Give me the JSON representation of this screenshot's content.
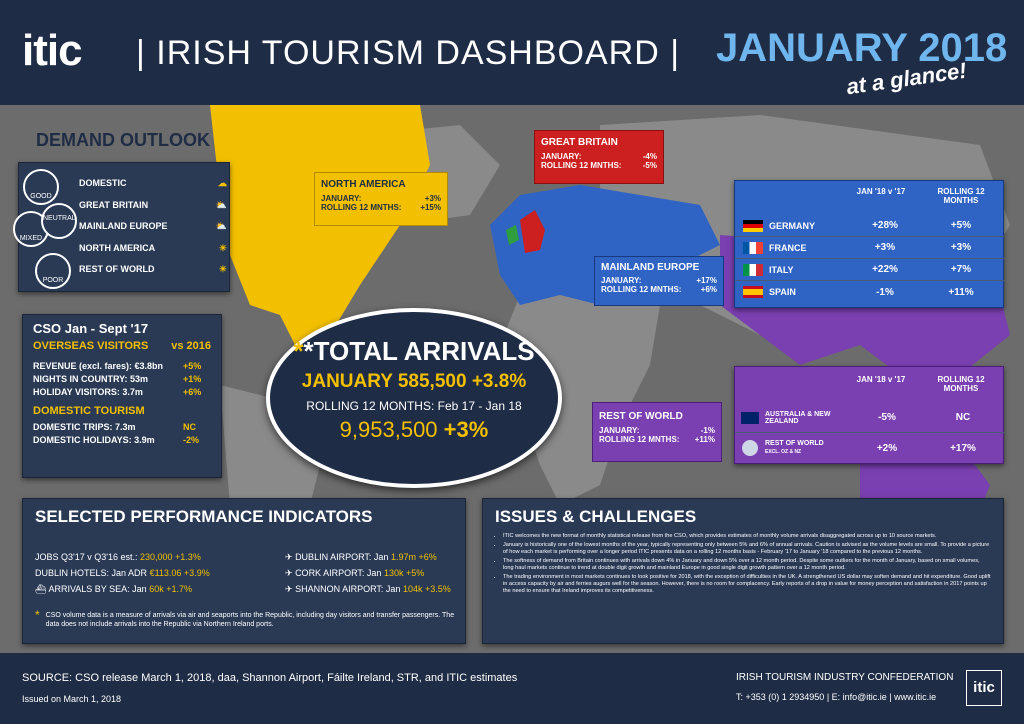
{
  "header": {
    "logo": "itic",
    "title": "| IRISH TOURISM DASHBOARD |",
    "month": "JANUARY 2018",
    "tagline": "at a glance!"
  },
  "demand": {
    "title": "DEMAND OUTLOOK",
    "legend": [
      "GOOD",
      "NEUTRAL",
      "MIXED",
      "POOR"
    ],
    "items": [
      {
        "label": "DOMESTIC",
        "icon": "cloud-icon"
      },
      {
        "label": "GREAT BRITAIN",
        "icon": "sun-cloud-icon"
      },
      {
        "label": "MAINLAND EUROPE",
        "icon": "sun-cloud-icon"
      },
      {
        "label": "NORTH AMERICA",
        "icon": "sun-icon"
      },
      {
        "label": "REST OF WORLD",
        "icon": "sun-icon"
      }
    ]
  },
  "north_america": {
    "title": "NORTH AMERICA",
    "jan_label": "JANUARY:",
    "jan": "+3%",
    "roll_label": "ROLLING 12 MNTHS:",
    "roll": "+15%"
  },
  "gb": {
    "title": "GREAT BRITAIN",
    "jan_label": "JANUARY:",
    "jan": "-4%",
    "roll_label": "ROLLING 12 MNTHS:",
    "roll": "-5%"
  },
  "europe": {
    "title": "MAINLAND EUROPE",
    "jan_label": "JANUARY:",
    "jan": "+17%",
    "roll_label": "ROLLING 12 MNTHS:",
    "roll": "+6%"
  },
  "row": {
    "title": "REST OF WORLD",
    "jan_label": "JANUARY:",
    "jan": "-1%",
    "roll_label": "ROLLING 12 MNTHS:",
    "roll": "+11%"
  },
  "eu_table": {
    "h1": "JAN '18 v '17",
    "h2": "ROLLING 12 MONTHS",
    "rows": [
      {
        "c": "GERMANY",
        "a": "+28%",
        "b": "+5%"
      },
      {
        "c": "FRANCE",
        "a": "+3%",
        "b": "+3%"
      },
      {
        "c": "ITALY",
        "a": "+22%",
        "b": "+7%"
      },
      {
        "c": "SPAIN",
        "a": "-1%",
        "b": "+11%"
      }
    ]
  },
  "row_table": {
    "h1": "JAN '18 v '17",
    "h2": "ROLLING 12 MONTHS",
    "rows": [
      {
        "c": "AUSTRALIA & NEW ZEALAND",
        "s": "",
        "a": "-5%",
        "b": "NC"
      },
      {
        "c": "REST OF WORLD",
        "s": "EXCL. OZ & NZ",
        "a": "+2%",
        "b": "+17%"
      }
    ]
  },
  "cso": {
    "title": "CSO Jan - Sept '17",
    "overseas": "OVERSEAS VISITORS",
    "vs": "vs 2016",
    "lines": [
      {
        "l": "REVENUE (excl. fares): €3.8bn",
        "v": "+5%"
      },
      {
        "l": "NIGHTS IN COUNTRY: 53m",
        "v": "+1%"
      },
      {
        "l": "HOLIDAY VISITORS: 3.7m",
        "v": "+6%"
      }
    ],
    "domestic": "DOMESTIC TOURISM",
    "dlines": [
      {
        "l": "DOMESTIC TRIPS: 7.3m",
        "v": "NC"
      },
      {
        "l": "DOMESTIC HOLIDAYS: 3.9m",
        "v": "-2%"
      }
    ]
  },
  "total": {
    "title": "*TOTAL ARRIVALS",
    "jan": "JANUARY 585,500 +3.8%",
    "rolling": "ROLLING 12 MONTHS: Feb 17 - Jan 18",
    "value": "9,953,500",
    "change": "+3%"
  },
  "spi": {
    "title": "SELECTED PERFORMANCE INDICATORS",
    "left": [
      {
        "l": "JOBS Q3'17 v Q3'16 est.:",
        "v": "230,000 +1.3%"
      },
      {
        "l": "DUBLIN HOTELS: Jan ADR",
        "v": "€113.06 +3.9%"
      },
      {
        "l": "ARRIVALS BY SEA: Jan",
        "v": "60k +1.7%"
      }
    ],
    "right": [
      {
        "l": "DUBLIN AIRPORT: Jan",
        "v": "1.97m +6%"
      },
      {
        "l": "CORK AIRPORT: Jan",
        "v": "130k +5%"
      },
      {
        "l": "SHANNON AIRPORT: Jan",
        "v": "104k +3.5%"
      }
    ],
    "note": "CSO volume data is a measure of arrivals via air and seaports into the Republic, including day visitors and transfer passengers. The data does not include arrivals into the Republic via Northern Ireland ports."
  },
  "issues": {
    "title": "ISSUES & CHALLENGES",
    "items": [
      "ITIC welcomes the new format of monthly statistical release from the CSO, which provides estimates of monthly volume arrivals disaggregated across up to 10 source markets.",
      "January is historically one of the lowest months of the year, typically representing only between 5% and 6% of annual arrivals. Caution is advised as the volume levels are small. To provide a picture of how each market is performing over a longer period ITIC presents data on a rolling 12 months basis - February '17 to January '18 compared to the previous 12 months.",
      "The softness of demand from Britain continues with arrivals down 4% in January and down 5% over a 12 month period. Despite some outliers for the month of January, based on small volumes, long haul markets continue to trend at double digit growth and mainland Europe in good single digit growth pattern over a 12 month period.",
      "The trading environment in most markets continues to look positive for 2018, with the exception of difficulties in the UK. A strengthened US dollar may soften demand and hit expenditure. Good uplift in access capacity by air and ferries augurs well for the season. However, there is no room for complacency. Early reports of a drop in value for money perception and satisfaction in 2017 points up the need to ensure that Ireland improves its competitiveness."
    ]
  },
  "footer": {
    "source": "SOURCE: CSO release March 1, 2018, daa, Shannon Airport, Fáilte Ireland, STR, and ITIC estimates",
    "issued": "Issued on March 1, 2018",
    "org": "IRISH TOURISM INDUSTRY CONFEDERATION",
    "contact": "T: +353 (0) 1 2934950 | E: info@itic.ie | www.itic.ie",
    "logo": "itic"
  }
}
